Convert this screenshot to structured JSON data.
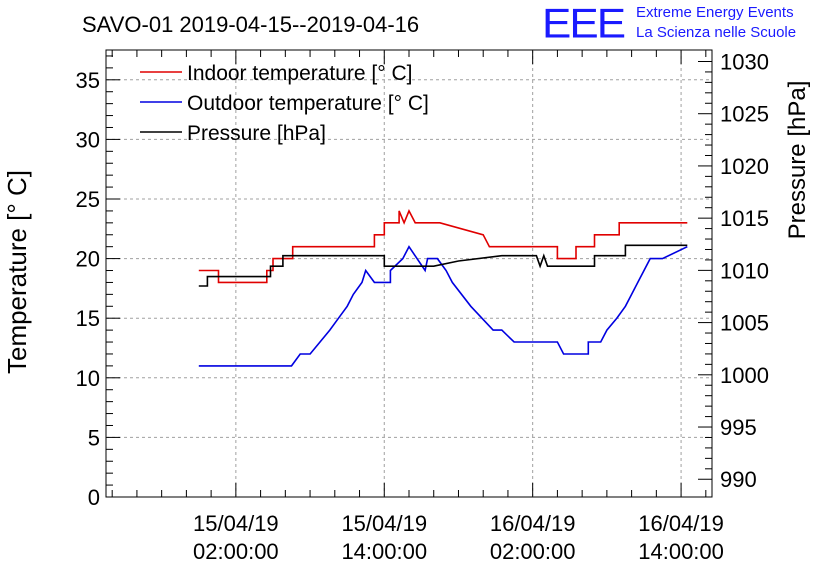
{
  "logo": {
    "mark": "EEE",
    "line1": "Extreme Energy Events",
    "line2": "La Scienza nelle Scuole"
  },
  "colors": {
    "indoor": "#e00000",
    "outdoor": "#0000e0",
    "pressure": "#000000",
    "grid": "#999999",
    "logo": "#1a1aff"
  },
  "chart_data": {
    "type": "line",
    "title": "SAVO-01 2019-04-15--2019-04-16",
    "xlabel": "",
    "ylabel": "Temperature [° C]",
    "y2label": "Pressure [hPa]",
    "xlim_hours": [
      -8.5,
      40.5
    ],
    "ylim": [
      0,
      37.5
    ],
    "y2lim": [
      988.3,
      1031.1
    ],
    "grid": true,
    "legend_position": "top-left",
    "xticks": [
      {
        "hour": 2,
        "line1": "15/04/19",
        "line2": "02:00:00"
      },
      {
        "hour": 14,
        "line1": "15/04/19",
        "line2": "14:00:00"
      },
      {
        "hour": 26,
        "line1": "16/04/19",
        "line2": "02:00:00"
      },
      {
        "hour": 38,
        "line1": "16/04/19",
        "line2": "14:00:00"
      }
    ],
    "yticks": [
      0,
      5,
      10,
      15,
      20,
      25,
      30,
      35
    ],
    "y2ticks": [
      990,
      995,
      1000,
      1005,
      1010,
      1015,
      1020,
      1025,
      1030
    ],
    "series": [
      {
        "name": "Indoor temperature [° C]",
        "axis": "left",
        "color": "#e00000",
        "points": [
          [
            -1,
            19
          ],
          [
            0.6,
            19
          ],
          [
            0.6,
            18
          ],
          [
            4.5,
            18
          ],
          [
            4.5,
            19
          ],
          [
            5.0,
            19
          ],
          [
            5.0,
            20
          ],
          [
            6.6,
            20
          ],
          [
            6.6,
            21
          ],
          [
            13.2,
            21
          ],
          [
            13.2,
            22
          ],
          [
            14.0,
            22
          ],
          [
            14.0,
            23
          ],
          [
            15.2,
            23
          ],
          [
            15.2,
            24
          ],
          [
            15.6,
            23
          ],
          [
            16.0,
            24
          ],
          [
            16.5,
            23
          ],
          [
            18.5,
            23
          ],
          [
            22.0,
            22
          ],
          [
            22.5,
            21
          ],
          [
            26.0,
            21
          ],
          [
            28.0,
            21
          ],
          [
            28.0,
            20
          ],
          [
            29.5,
            20
          ],
          [
            29.5,
            21
          ],
          [
            31.0,
            21
          ],
          [
            31.0,
            22
          ],
          [
            33.0,
            22
          ],
          [
            33.0,
            23
          ],
          [
            36.0,
            23
          ],
          [
            38.5,
            23
          ]
        ]
      },
      {
        "name": "Outdoor temperature [° C]",
        "axis": "left",
        "color": "#0000e0",
        "points": [
          [
            -1,
            11
          ],
          [
            6.5,
            11
          ],
          [
            7.2,
            12
          ],
          [
            8.0,
            12
          ],
          [
            8.8,
            13
          ],
          [
            9.6,
            14
          ],
          [
            10.3,
            15
          ],
          [
            11.0,
            16
          ],
          [
            11.5,
            17
          ],
          [
            12.2,
            18
          ],
          [
            12.5,
            19
          ],
          [
            13.2,
            18
          ],
          [
            14.5,
            18
          ],
          [
            14.5,
            19
          ],
          [
            15.5,
            20
          ],
          [
            16.0,
            21
          ],
          [
            17.3,
            19
          ],
          [
            17.5,
            20
          ],
          [
            18.3,
            20
          ],
          [
            19.0,
            19
          ],
          [
            19.5,
            18
          ],
          [
            21.0,
            16
          ],
          [
            22.8,
            14
          ],
          [
            23.5,
            14
          ],
          [
            24.5,
            13
          ],
          [
            28.0,
            13
          ],
          [
            28.5,
            12
          ],
          [
            30.5,
            12
          ],
          [
            30.5,
            13
          ],
          [
            31.5,
            13
          ],
          [
            32.0,
            14
          ],
          [
            32.8,
            15
          ],
          [
            33.5,
            16
          ],
          [
            34.0,
            17
          ],
          [
            34.5,
            18
          ],
          [
            35.0,
            19
          ],
          [
            35.5,
            20
          ],
          [
            36.5,
            20
          ],
          [
            38.5,
            21
          ]
        ]
      },
      {
        "name": "Pressure [hPa]",
        "axis": "right",
        "color": "#000000",
        "points": [
          [
            -1,
            1008.5
          ],
          [
            -0.3,
            1008.5
          ],
          [
            -0.3,
            1009.4
          ],
          [
            4.8,
            1009.4
          ],
          [
            4.8,
            1010.4
          ],
          [
            5.8,
            1010.4
          ],
          [
            5.8,
            1011.4
          ],
          [
            14.0,
            1011.4
          ],
          [
            14.0,
            1010.4
          ],
          [
            18.0,
            1010.4
          ],
          [
            20.0,
            1010.9
          ],
          [
            23.5,
            1011.4
          ],
          [
            26.3,
            1011.4
          ],
          [
            26.6,
            1010.4
          ],
          [
            26.9,
            1011.4
          ],
          [
            27.2,
            1010.4
          ],
          [
            31.0,
            1010.4
          ],
          [
            31.0,
            1011.4
          ],
          [
            33.5,
            1011.4
          ],
          [
            33.5,
            1012.4
          ],
          [
            38.5,
            1012.4
          ]
        ]
      }
    ]
  }
}
